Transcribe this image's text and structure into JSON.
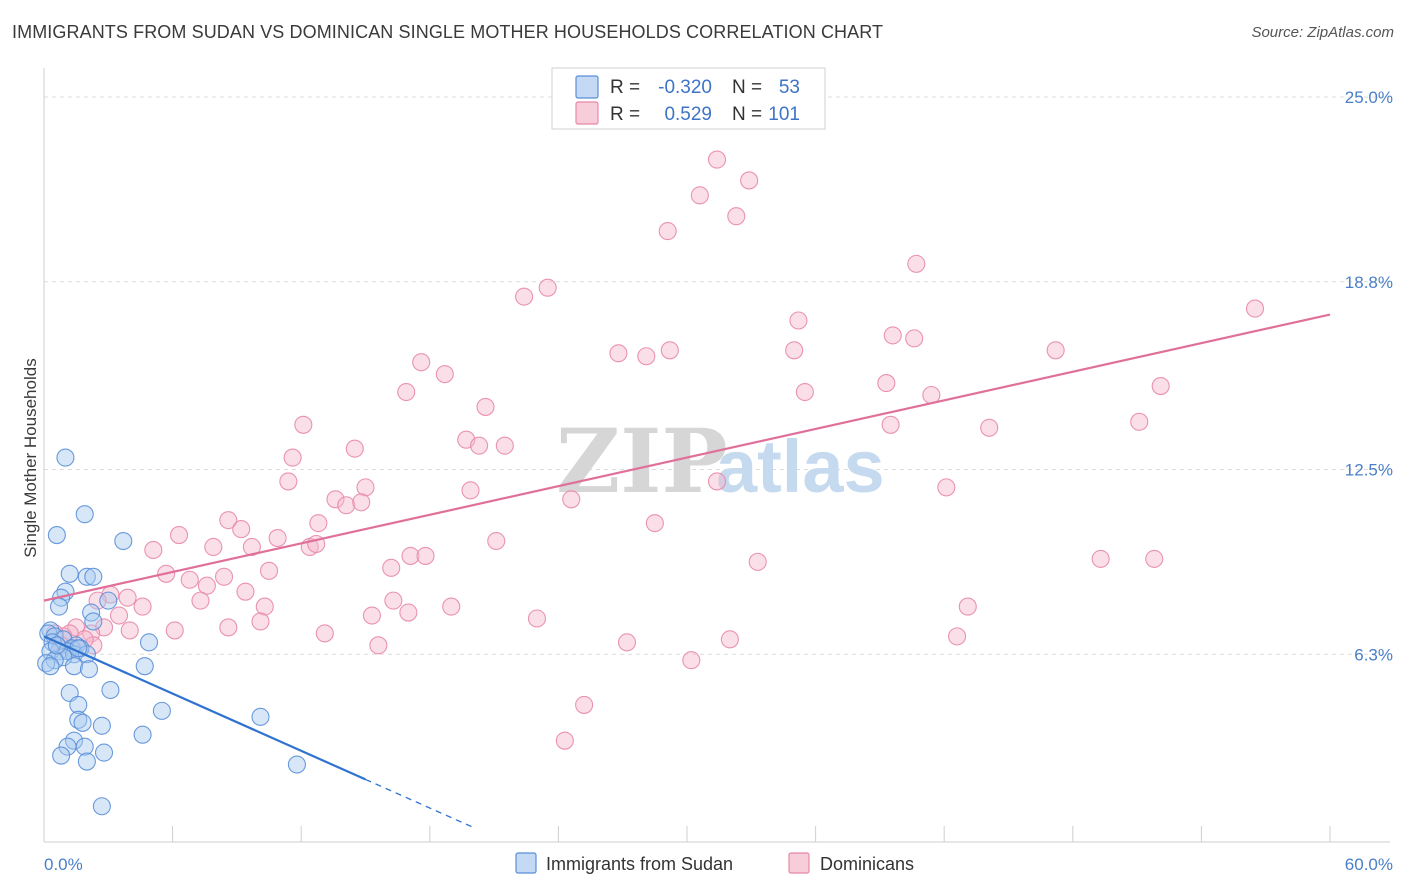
{
  "header": {
    "title": "IMMIGRANTS FROM SUDAN VS DOMINICAN SINGLE MOTHER HOUSEHOLDS CORRELATION CHART",
    "source": "Source: ZipAtlas.com"
  },
  "watermark": {
    "part1": "ZIP",
    "part2": "atlas"
  },
  "legend": {
    "rows": [
      {
        "r_label": "R =",
        "r_value": "-0.320",
        "n_label": "N =",
        "n_value": "53",
        "color": "#a9c9f0"
      },
      {
        "r_label": "R =",
        "r_value": "0.529",
        "n_label": "N =",
        "n_value": "101",
        "color": "#f5b8cb"
      }
    ]
  },
  "bottom_legend": {
    "items": [
      {
        "label": "Immigrants from Sudan",
        "color": "#a9c9f0"
      },
      {
        "label": "Dominicans",
        "color": "#f5b8cb"
      }
    ]
  },
  "chart_data": {
    "type": "scatter",
    "ylabel": "Single Mother Households",
    "xlim": [
      0,
      60
    ],
    "ylim": [
      0,
      25.0
    ],
    "x_tick_labels": [
      "0.0%",
      "60.0%"
    ],
    "y_ticks": [
      6.3,
      12.5,
      18.8,
      25.0
    ],
    "y_tick_labels": [
      "6.3%",
      "12.5%",
      "18.8%",
      "25.0%"
    ],
    "grid": true,
    "colors": {
      "sudan": "#5a8fd8",
      "sudan_fill": "#a9c9f0",
      "sudan_line": "#2f73cf",
      "dom": "#e888a8",
      "dom_fill": "#f5b8cb",
      "dom_line": "#e0709a"
    },
    "series": [
      {
        "name": "Immigrants from Sudan",
        "trend": {
          "x0": 0,
          "y0": 6.9,
          "x1": 15,
          "y1": 2.1,
          "dash_to_x": 20,
          "dash_to_y": 0.5
        },
        "points": [
          [
            1.0,
            12.9
          ],
          [
            1.9,
            11.0
          ],
          [
            0.6,
            10.3
          ],
          [
            3.7,
            10.1
          ],
          [
            1.2,
            9.0
          ],
          [
            2.0,
            8.9
          ],
          [
            2.3,
            8.9
          ],
          [
            1.0,
            8.4
          ],
          [
            0.8,
            8.2
          ],
          [
            3.0,
            8.1
          ],
          [
            0.7,
            7.9
          ],
          [
            2.2,
            7.7
          ],
          [
            2.3,
            7.4
          ],
          [
            0.3,
            7.1
          ],
          [
            0.2,
            7.0
          ],
          [
            0.5,
            6.9
          ],
          [
            0.9,
            6.8
          ],
          [
            0.4,
            6.7
          ],
          [
            1.5,
            6.6
          ],
          [
            1.3,
            6.5
          ],
          [
            4.9,
            6.7
          ],
          [
            0.7,
            6.4
          ],
          [
            1.1,
            6.4
          ],
          [
            1.7,
            6.5
          ],
          [
            0.3,
            6.4
          ],
          [
            1.4,
            6.3
          ],
          [
            2.0,
            6.3
          ],
          [
            0.9,
            6.2
          ],
          [
            0.5,
            6.1
          ],
          [
            0.1,
            6.0
          ],
          [
            0.3,
            5.9
          ],
          [
            1.4,
            5.9
          ],
          [
            2.1,
            5.8
          ],
          [
            4.7,
            5.9
          ],
          [
            1.2,
            5.0
          ],
          [
            3.1,
            5.1
          ],
          [
            1.6,
            4.6
          ],
          [
            5.5,
            4.4
          ],
          [
            1.6,
            4.1
          ],
          [
            1.8,
            4.0
          ],
          [
            10.1,
            4.2
          ],
          [
            4.6,
            3.6
          ],
          [
            2.7,
            3.9
          ],
          [
            1.4,
            3.4
          ],
          [
            1.1,
            3.2
          ],
          [
            1.9,
            3.2
          ],
          [
            0.8,
            2.9
          ],
          [
            2.8,
            3.0
          ],
          [
            2.0,
            2.7
          ],
          [
            11.8,
            2.6
          ],
          [
            2.7,
            1.2
          ],
          [
            0.6,
            6.6
          ],
          [
            1.6,
            6.5
          ]
        ]
      },
      {
        "name": "Dominicans",
        "trend": {
          "x0": 0,
          "y0": 8.1,
          "x1": 60,
          "y1": 17.7
        },
        "points": [
          [
            31.4,
            22.9
          ],
          [
            32.9,
            22.2
          ],
          [
            30.6,
            21.7
          ],
          [
            32.3,
            21.0
          ],
          [
            29.1,
            20.5
          ],
          [
            40.7,
            19.4
          ],
          [
            23.5,
            18.6
          ],
          [
            22.4,
            18.3
          ],
          [
            56.5,
            17.9
          ],
          [
            35.2,
            17.5
          ],
          [
            39.6,
            17.0
          ],
          [
            40.6,
            16.9
          ],
          [
            35.0,
            16.5
          ],
          [
            29.2,
            16.5
          ],
          [
            26.8,
            16.4
          ],
          [
            28.1,
            16.3
          ],
          [
            47.2,
            16.5
          ],
          [
            17.6,
            16.1
          ],
          [
            18.7,
            15.7
          ],
          [
            39.3,
            15.4
          ],
          [
            35.5,
            15.1
          ],
          [
            52.1,
            15.3
          ],
          [
            16.9,
            15.1
          ],
          [
            41.4,
            15.0
          ],
          [
            20.6,
            14.6
          ],
          [
            12.1,
            14.0
          ],
          [
            39.5,
            14.0
          ],
          [
            51.1,
            14.1
          ],
          [
            44.1,
            13.9
          ],
          [
            19.7,
            13.5
          ],
          [
            20.3,
            13.3
          ],
          [
            21.5,
            13.3
          ],
          [
            14.5,
            13.2
          ],
          [
            11.6,
            12.9
          ],
          [
            31.4,
            12.1
          ],
          [
            11.4,
            12.1
          ],
          [
            15.0,
            11.9
          ],
          [
            19.9,
            11.8
          ],
          [
            42.1,
            11.9
          ],
          [
            13.6,
            11.5
          ],
          [
            14.1,
            11.3
          ],
          [
            14.8,
            11.4
          ],
          [
            24.6,
            11.5
          ],
          [
            8.6,
            10.8
          ],
          [
            12.8,
            10.7
          ],
          [
            28.5,
            10.7
          ],
          [
            9.2,
            10.5
          ],
          [
            6.3,
            10.3
          ],
          [
            10.9,
            10.2
          ],
          [
            21.1,
            10.1
          ],
          [
            7.9,
            9.9
          ],
          [
            12.4,
            9.9
          ],
          [
            12.7,
            10.0
          ],
          [
            5.1,
            9.8
          ],
          [
            9.7,
            9.9
          ],
          [
            17.1,
            9.6
          ],
          [
            17.8,
            9.6
          ],
          [
            49.3,
            9.5
          ],
          [
            51.8,
            9.5
          ],
          [
            33.3,
            9.4
          ],
          [
            16.2,
            9.2
          ],
          [
            10.5,
            9.1
          ],
          [
            5.7,
            9.0
          ],
          [
            8.4,
            8.9
          ],
          [
            6.8,
            8.8
          ],
          [
            7.6,
            8.6
          ],
          [
            9.4,
            8.4
          ],
          [
            3.1,
            8.3
          ],
          [
            3.9,
            8.2
          ],
          [
            16.3,
            8.1
          ],
          [
            7.3,
            8.1
          ],
          [
            2.5,
            8.1
          ],
          [
            10.3,
            7.9
          ],
          [
            4.6,
            7.9
          ],
          [
            19.0,
            7.9
          ],
          [
            43.1,
            7.9
          ],
          [
            17.0,
            7.7
          ],
          [
            15.3,
            7.6
          ],
          [
            23.0,
            7.5
          ],
          [
            10.1,
            7.4
          ],
          [
            8.6,
            7.2
          ],
          [
            2.8,
            7.2
          ],
          [
            4.0,
            7.1
          ],
          [
            1.5,
            7.2
          ],
          [
            6.1,
            7.1
          ],
          [
            2.2,
            7.0
          ],
          [
            1.2,
            7.0
          ],
          [
            13.1,
            7.0
          ],
          [
            0.9,
            6.9
          ],
          [
            42.6,
            6.9
          ],
          [
            32.0,
            6.8
          ],
          [
            27.2,
            6.7
          ],
          [
            15.6,
            6.6
          ],
          [
            2.3,
            6.6
          ],
          [
            30.2,
            6.1
          ],
          [
            25.2,
            4.6
          ],
          [
            24.3,
            3.4
          ],
          [
            0.8,
            6.6
          ],
          [
            1.9,
            6.8
          ],
          [
            3.5,
            7.6
          ],
          [
            0.5,
            7.0
          ]
        ]
      }
    ]
  }
}
